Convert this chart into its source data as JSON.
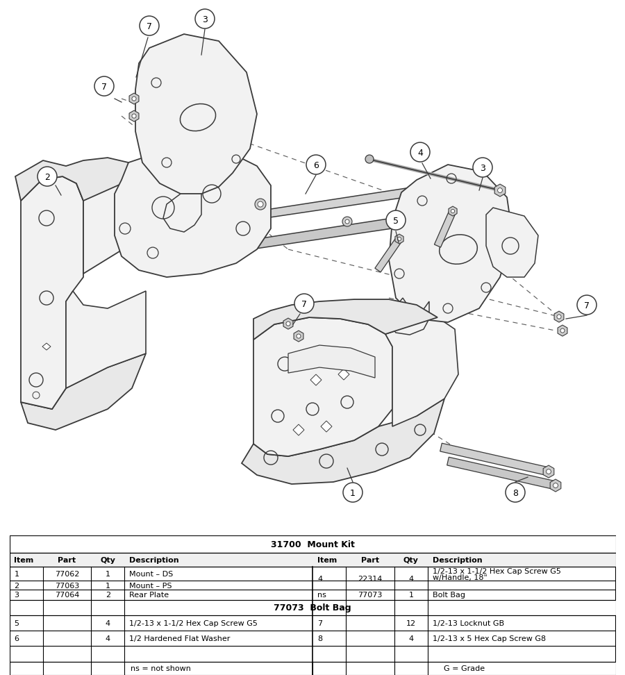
{
  "table_title": "31700  Mount Kit",
  "bolt_bag_title": "77073  Bolt Bag",
  "header_cols": [
    "Item",
    "Part",
    "Qty",
    "Description"
  ],
  "main_rows_left": [
    [
      "1",
      "77062",
      "1",
      "Mount – DS"
    ],
    [
      "2",
      "77063",
      "1",
      "Mount – PS"
    ],
    [
      "3",
      "77064",
      "2",
      "Rear Plate"
    ]
  ],
  "main_row4_item": "4",
  "main_row4_part": "22314",
  "main_row4_qty": "4",
  "main_row4_desc1": "1/2-13 x 1-1/2 Hex Cap Screw G5",
  "main_row4_desc2": "w/Handle, 18\"",
  "main_rowns_item": "ns",
  "main_rowns_part": "77073",
  "main_rowns_qty": "1",
  "main_rowns_desc": "Bolt Bag",
  "bolt_rows_left": [
    [
      "5",
      "",
      "4",
      "1/2-13 x 1-1/2 Hex Cap Screw G5"
    ],
    [
      "6",
      "",
      "4",
      "1/2 Hardened Flat Washer"
    ]
  ],
  "bolt_rows_right": [
    [
      "7",
      "",
      "12",
      "1/2-13 Locknut GB"
    ],
    [
      "8",
      "",
      "4",
      "1/2-13 x 5 Hex Cap Screw G8"
    ]
  ],
  "footer_left": "ns = not shown",
  "footer_right": "G = Grade",
  "bg_color": "#ffffff",
  "line_color": "#3a3a3a",
  "fill_light": "#f2f2f2",
  "fill_mid": "#e8e8e8",
  "fill_dark": "#d8d8d8"
}
